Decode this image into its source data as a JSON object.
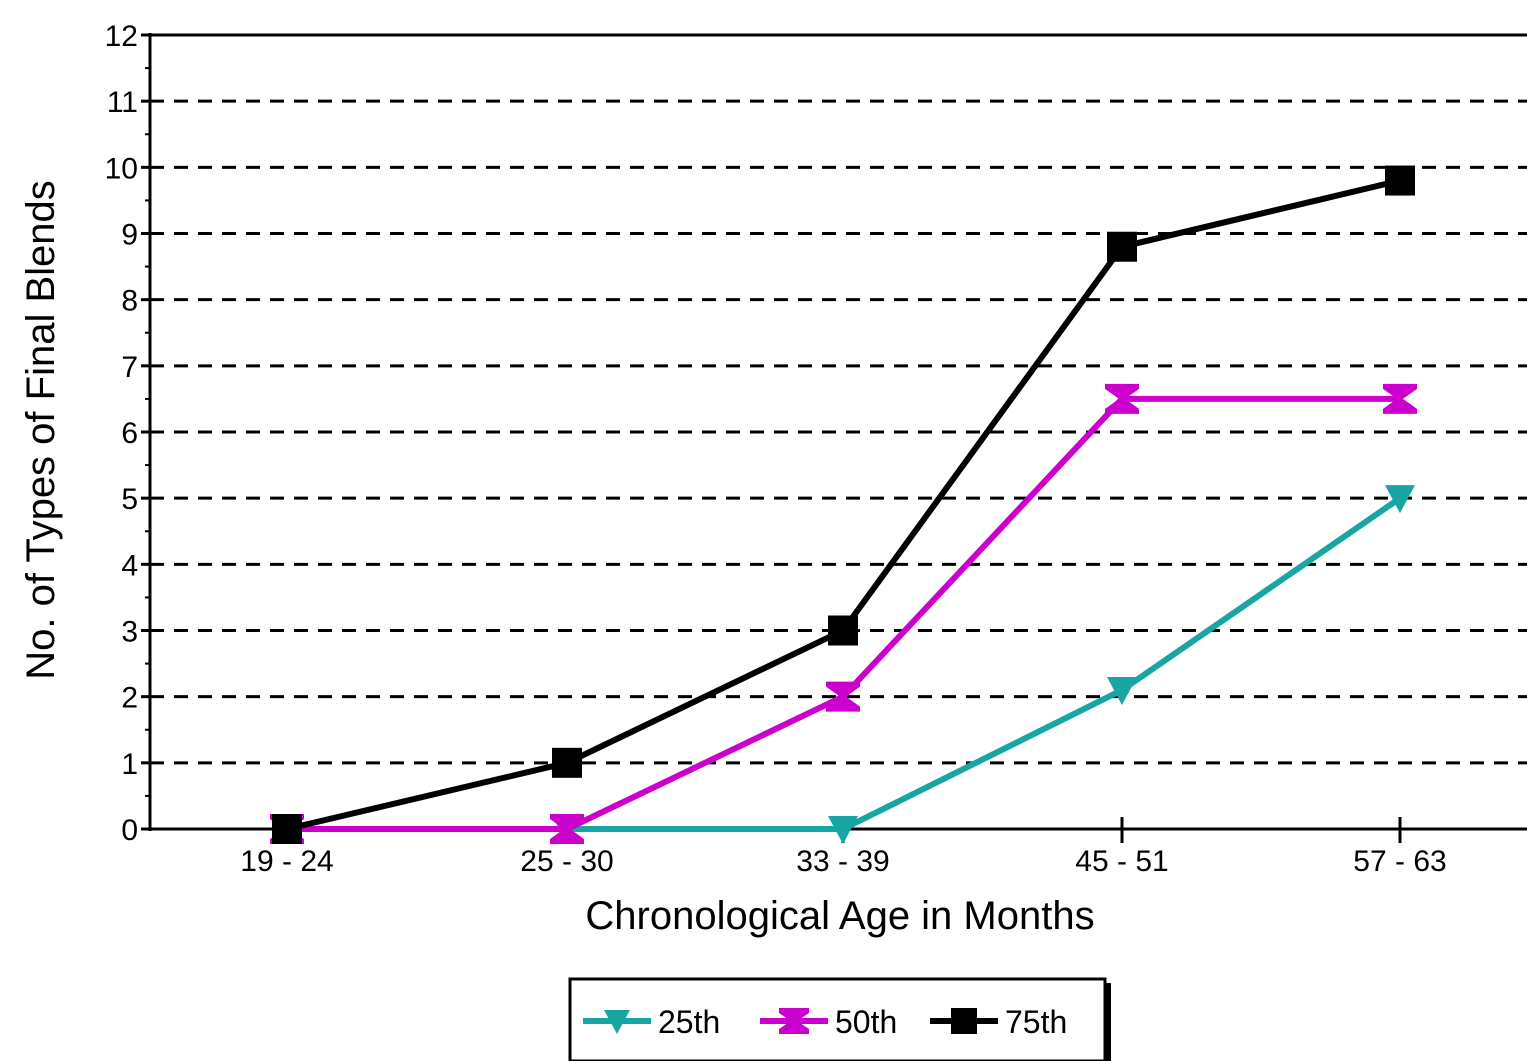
{
  "chart_data": {
    "type": "line",
    "title": "",
    "xlabel": "Chronological Age in Months",
    "ylabel": "No. of Types of Final Blends",
    "categories": [
      "19 - 24",
      "25 - 30",
      "33 - 39",
      "45 - 51",
      "57 - 63"
    ],
    "ylim": [
      0,
      12
    ],
    "yticks": [
      "0",
      "1",
      "2",
      "3",
      "4",
      "5",
      "6",
      "7",
      "8",
      "9",
      "10",
      "11",
      "12"
    ],
    "grid": "horizontal dashed",
    "legend_position": "bottom-center",
    "series": [
      {
        "name": "25th",
        "color": "#1aa5a5",
        "marker": "triangle-down",
        "values": [
          0,
          0,
          0,
          2.1,
          5.0
        ]
      },
      {
        "name": "50th",
        "color": "#cc00cc",
        "marker": "hourglass",
        "values": [
          0,
          0,
          2.0,
          6.5,
          6.5
        ]
      },
      {
        "name": "75th",
        "color": "#000000",
        "marker": "square",
        "values": [
          0,
          1.0,
          3.0,
          8.8,
          9.8
        ]
      }
    ]
  }
}
